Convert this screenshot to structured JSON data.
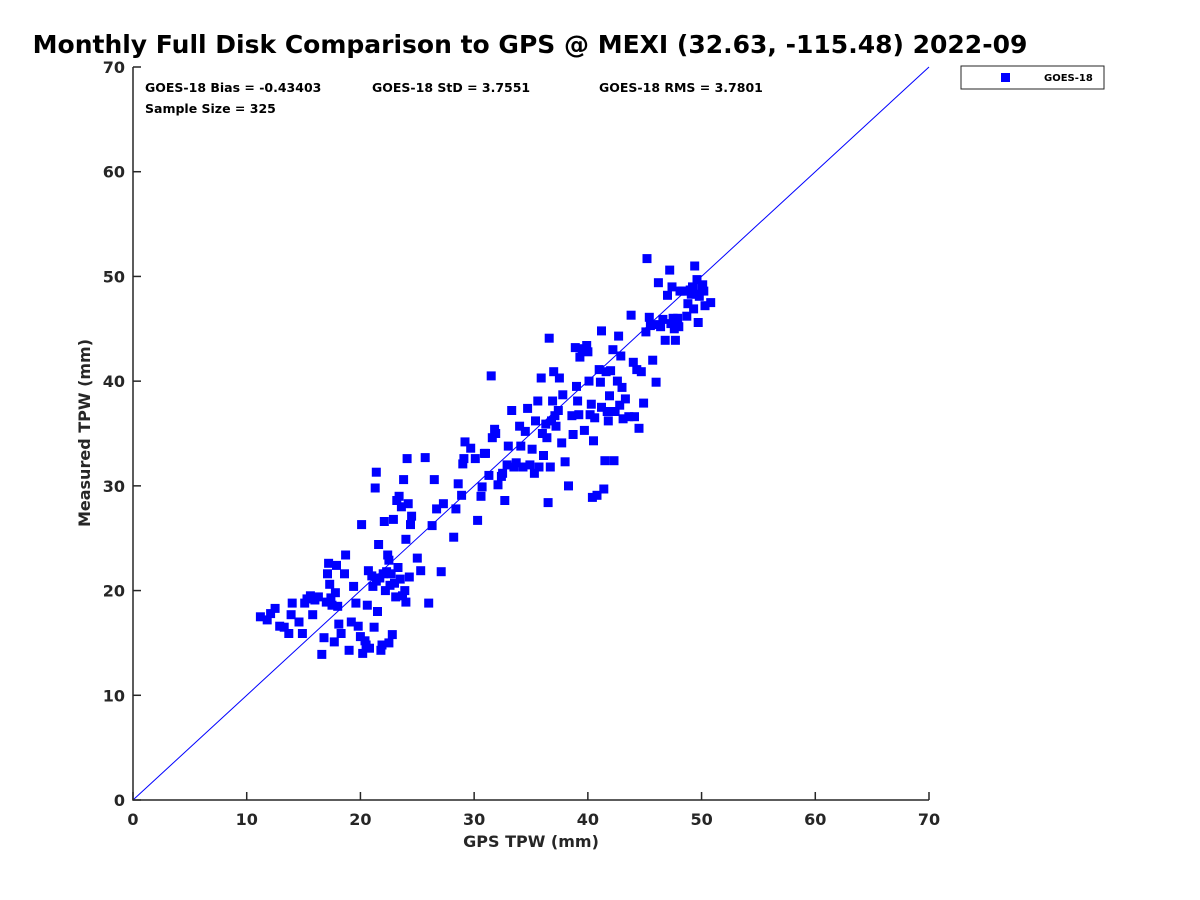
{
  "chart_data": {
    "type": "scatter",
    "title": "Monthly Full Disk Comparison to GPS @ MEXI (32.63, -115.48) 2022-09",
    "xlabel": "GPS TPW (mm)",
    "ylabel": "Measured TPW (mm)",
    "xlim": [
      0,
      70
    ],
    "ylim": [
      0,
      70
    ],
    "xticks": [
      0,
      10,
      20,
      30,
      40,
      50,
      60,
      70
    ],
    "yticks": [
      0,
      10,
      20,
      30,
      40,
      50,
      60,
      70
    ],
    "grid": false,
    "legend_position": "outside-top-right",
    "reference_line": {
      "type": "one-to-one",
      "color": "#0000ff"
    },
    "stats": {
      "bias": "GOES-18 Bias = -0.43403",
      "std": "GOES-18 StD = 3.7551",
      "rms": "GOES-18 RMS = 3.7801",
      "sample": "Sample Size = 325"
    },
    "series": [
      {
        "name": "GOES-18",
        "color": "#0000ff",
        "marker": "square",
        "points": [
          [
            11.2,
            17.5
          ],
          [
            11.8,
            17.2
          ],
          [
            12.1,
            17.8
          ],
          [
            12.5,
            18.3
          ],
          [
            12.9,
            16.6
          ],
          [
            13.3,
            16.5
          ],
          [
            13.7,
            15.9
          ],
          [
            13.9,
            17.7
          ],
          [
            14.0,
            18.8
          ],
          [
            14.6,
            17.0
          ],
          [
            14.9,
            15.9
          ],
          [
            15.1,
            18.8
          ],
          [
            15.3,
            19.2
          ],
          [
            15.6,
            19.5
          ],
          [
            15.8,
            17.7
          ],
          [
            16.0,
            19.1
          ],
          [
            16.3,
            19.4
          ],
          [
            16.6,
            13.9
          ],
          [
            16.8,
            15.5
          ],
          [
            17.0,
            18.9
          ],
          [
            17.1,
            21.6
          ],
          [
            17.2,
            22.6
          ],
          [
            17.3,
            20.6
          ],
          [
            17.4,
            19.3
          ],
          [
            17.5,
            18.6
          ],
          [
            17.7,
            15.1
          ],
          [
            17.8,
            19.8
          ],
          [
            17.9,
            22.4
          ],
          [
            18.0,
            18.5
          ],
          [
            18.1,
            16.8
          ],
          [
            18.3,
            15.9
          ],
          [
            18.6,
            21.6
          ],
          [
            18.7,
            23.4
          ],
          [
            19.0,
            14.3
          ],
          [
            19.2,
            17.0
          ],
          [
            19.4,
            20.4
          ],
          [
            19.6,
            18.8
          ],
          [
            19.8,
            16.6
          ],
          [
            20.0,
            15.6
          ],
          [
            20.1,
            26.3
          ],
          [
            20.2,
            14.0
          ],
          [
            20.4,
            15.2
          ],
          [
            20.5,
            14.8
          ],
          [
            20.6,
            18.6
          ],
          [
            20.7,
            21.9
          ],
          [
            20.8,
            14.5
          ],
          [
            21.0,
            21.4
          ],
          [
            21.1,
            20.4
          ],
          [
            21.2,
            16.5
          ],
          [
            21.3,
            29.8
          ],
          [
            21.4,
            31.3
          ],
          [
            21.4,
            20.9
          ],
          [
            21.5,
            18.0
          ],
          [
            21.6,
            24.4
          ],
          [
            21.7,
            21.2
          ],
          [
            21.8,
            14.3
          ],
          [
            21.9,
            14.8
          ],
          [
            22.0,
            21.6
          ],
          [
            22.1,
            26.6
          ],
          [
            22.2,
            20.0
          ],
          [
            22.3,
            21.8
          ],
          [
            22.4,
            23.4
          ],
          [
            22.5,
            22.9
          ],
          [
            22.5,
            15.0
          ],
          [
            22.6,
            20.5
          ],
          [
            22.7,
            21.6
          ],
          [
            22.8,
            15.8
          ],
          [
            22.9,
            26.8
          ],
          [
            23.0,
            20.7
          ],
          [
            23.1,
            19.4
          ],
          [
            23.2,
            28.6
          ],
          [
            23.3,
            22.2
          ],
          [
            23.4,
            29.0
          ],
          [
            23.5,
            21.1
          ],
          [
            23.6,
            28.0
          ],
          [
            23.7,
            19.5
          ],
          [
            23.8,
            30.6
          ],
          [
            23.9,
            20.0
          ],
          [
            24.0,
            24.9
          ],
          [
            24.0,
            18.9
          ],
          [
            24.1,
            32.6
          ],
          [
            24.2,
            28.3
          ],
          [
            24.3,
            21.3
          ],
          [
            24.4,
            26.3
          ],
          [
            24.5,
            27.1
          ],
          [
            25.0,
            23.1
          ],
          [
            25.3,
            21.9
          ],
          [
            25.7,
            32.7
          ],
          [
            26.0,
            18.8
          ],
          [
            26.3,
            26.2
          ],
          [
            26.5,
            30.6
          ],
          [
            26.7,
            27.8
          ],
          [
            27.1,
            21.8
          ],
          [
            27.3,
            28.3
          ],
          [
            28.2,
            25.1
          ],
          [
            28.4,
            27.8
          ],
          [
            28.6,
            30.2
          ],
          [
            28.9,
            29.1
          ],
          [
            29.0,
            32.1
          ],
          [
            29.1,
            32.6
          ],
          [
            29.2,
            34.2
          ],
          [
            29.7,
            33.6
          ],
          [
            30.1,
            32.6
          ],
          [
            30.3,
            26.7
          ],
          [
            30.6,
            29.0
          ],
          [
            30.7,
            29.9
          ],
          [
            30.9,
            33.1
          ],
          [
            31.0,
            33.1
          ],
          [
            31.3,
            31.0
          ],
          [
            31.5,
            40.5
          ],
          [
            31.6,
            34.6
          ],
          [
            31.8,
            35.4
          ],
          [
            31.9,
            35.0
          ],
          [
            32.1,
            30.1
          ],
          [
            32.4,
            30.9
          ],
          [
            32.5,
            31.2
          ],
          [
            32.7,
            28.6
          ],
          [
            32.9,
            32.0
          ],
          [
            33.0,
            33.8
          ],
          [
            33.3,
            37.2
          ],
          [
            33.5,
            31.8
          ],
          [
            33.7,
            32.2
          ],
          [
            34.0,
            35.7
          ],
          [
            34.1,
            33.8
          ],
          [
            34.3,
            31.8
          ],
          [
            34.5,
            35.2
          ],
          [
            34.7,
            37.4
          ],
          [
            34.9,
            32.0
          ],
          [
            35.1,
            33.5
          ],
          [
            35.3,
            31.2
          ],
          [
            35.4,
            36.2
          ],
          [
            35.6,
            38.1
          ],
          [
            35.7,
            31.8
          ],
          [
            35.9,
            40.3
          ],
          [
            36.0,
            35.0
          ],
          [
            36.1,
            32.9
          ],
          [
            36.3,
            35.9
          ],
          [
            36.4,
            34.6
          ],
          [
            36.5,
            28.4
          ],
          [
            36.6,
            44.1
          ],
          [
            36.7,
            31.8
          ],
          [
            36.8,
            36.2
          ],
          [
            36.9,
            38.1
          ],
          [
            37.0,
            40.9
          ],
          [
            37.1,
            36.7
          ],
          [
            37.2,
            35.7
          ],
          [
            37.4,
            37.2
          ],
          [
            37.5,
            40.3
          ],
          [
            37.7,
            34.1
          ],
          [
            37.8,
            38.7
          ],
          [
            38.0,
            32.3
          ],
          [
            38.3,
            30.0
          ],
          [
            38.6,
            36.7
          ],
          [
            38.7,
            34.9
          ],
          [
            38.9,
            43.2
          ],
          [
            39.0,
            39.5
          ],
          [
            39.1,
            38.1
          ],
          [
            39.2,
            36.8
          ],
          [
            39.3,
            42.3
          ],
          [
            39.5,
            43.1
          ],
          [
            39.7,
            35.3
          ],
          [
            39.9,
            43.4
          ],
          [
            40.0,
            42.8
          ],
          [
            40.1,
            40.0
          ],
          [
            40.2,
            36.8
          ],
          [
            40.3,
            37.8
          ],
          [
            40.4,
            28.9
          ],
          [
            40.5,
            34.3
          ],
          [
            40.6,
            36.5
          ],
          [
            40.8,
            29.1
          ],
          [
            41.0,
            41.1
          ],
          [
            41.1,
            39.9
          ],
          [
            41.2,
            37.5
          ],
          [
            41.2,
            44.8
          ],
          [
            41.4,
            29.7
          ],
          [
            41.5,
            32.4
          ],
          [
            41.6,
            40.9
          ],
          [
            41.7,
            37.1
          ],
          [
            41.8,
            36.2
          ],
          [
            41.9,
            38.6
          ],
          [
            42.0,
            41.0
          ],
          [
            42.2,
            43.0
          ],
          [
            42.3,
            32.4
          ],
          [
            42.4,
            37.1
          ],
          [
            42.6,
            40.0
          ],
          [
            42.7,
            44.3
          ],
          [
            42.8,
            37.7
          ],
          [
            42.9,
            42.4
          ],
          [
            43.0,
            39.4
          ],
          [
            43.1,
            36.4
          ],
          [
            43.3,
            38.3
          ],
          [
            43.6,
            36.6
          ],
          [
            43.8,
            46.3
          ],
          [
            44.0,
            41.8
          ],
          [
            44.1,
            36.6
          ],
          [
            44.3,
            41.1
          ],
          [
            44.5,
            35.5
          ],
          [
            44.7,
            40.9
          ],
          [
            44.9,
            37.9
          ],
          [
            45.1,
            44.7
          ],
          [
            45.2,
            51.7
          ],
          [
            45.4,
            46.1
          ],
          [
            45.5,
            45.3
          ],
          [
            45.7,
            42.0
          ],
          [
            45.9,
            45.4
          ],
          [
            46.0,
            39.9
          ],
          [
            46.2,
            49.4
          ],
          [
            46.4,
            45.2
          ],
          [
            46.6,
            45.9
          ],
          [
            46.8,
            43.9
          ],
          [
            47.0,
            48.2
          ],
          [
            47.2,
            50.6
          ],
          [
            47.3,
            45.5
          ],
          [
            47.4,
            49.0
          ],
          [
            47.5,
            46.0
          ],
          [
            47.6,
            45.0
          ],
          [
            47.7,
            43.9
          ],
          [
            47.9,
            46.0
          ],
          [
            48.0,
            45.2
          ],
          [
            48.1,
            48.6
          ],
          [
            48.3,
            48.6
          ],
          [
            48.5,
            48.6
          ],
          [
            48.7,
            46.2
          ],
          [
            48.8,
            47.4
          ],
          [
            49.0,
            48.7
          ],
          [
            49.1,
            48.3
          ],
          [
            49.2,
            49.0
          ],
          [
            49.3,
            46.9
          ],
          [
            49.4,
            51.0
          ],
          [
            49.5,
            48.3
          ],
          [
            49.6,
            49.7
          ],
          [
            49.7,
            45.6
          ],
          [
            49.8,
            48.1
          ],
          [
            50.0,
            48.9
          ],
          [
            50.1,
            49.2
          ],
          [
            50.2,
            48.6
          ],
          [
            50.3,
            47.2
          ],
          [
            50.8,
            47.5
          ]
        ]
      }
    ]
  }
}
